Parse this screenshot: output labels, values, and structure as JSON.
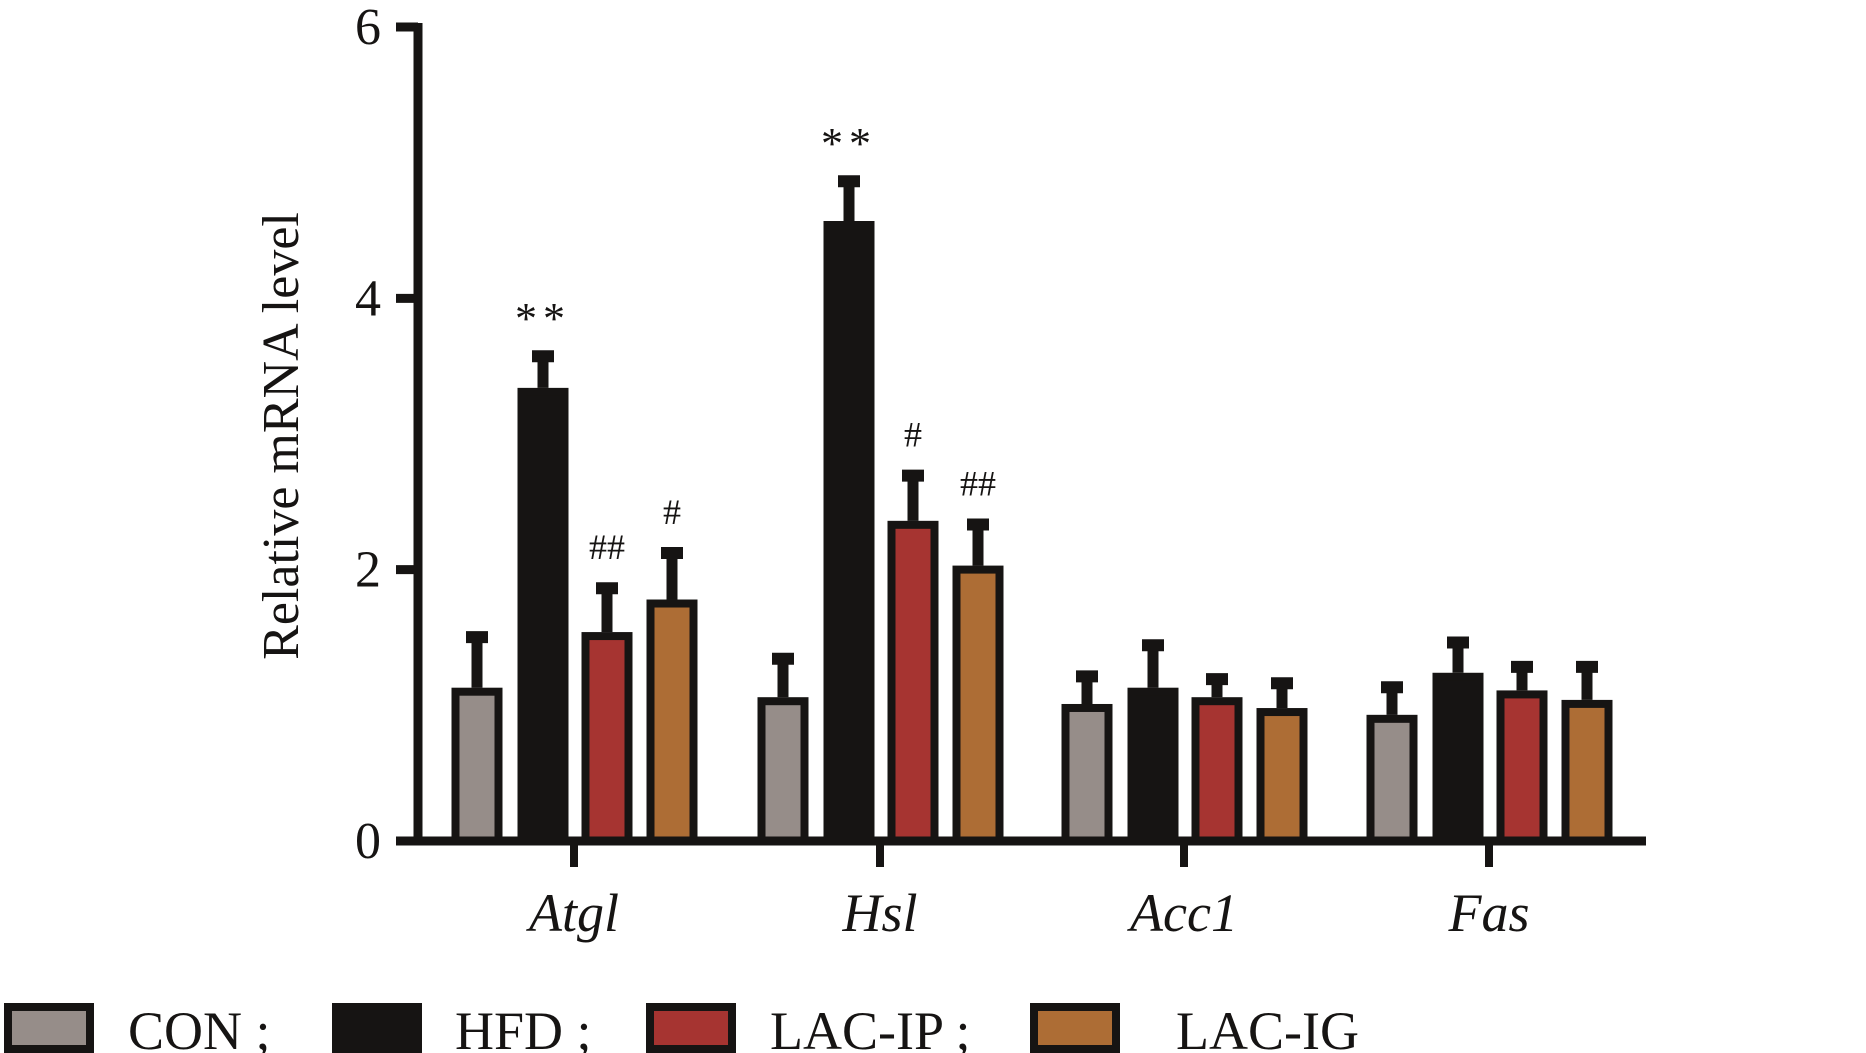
{
  "chart_data": {
    "type": "bar",
    "title": "",
    "xlabel": "",
    "ylabel": "Relative mRNA level",
    "ylim": [
      0,
      6
    ],
    "yticks": [
      "0",
      "2",
      "4",
      "6"
    ],
    "grid": false,
    "legend_position": "bottom",
    "categories": [
      "Atgl",
      "Hsl",
      "Acc1",
      "Fas"
    ],
    "series": [
      {
        "name": "CON",
        "legend_label": "CON ;",
        "color": "#968d89",
        "values": [
          1.13,
          1.06,
          1.01,
          0.93
        ],
        "error_upper": [
          1.54,
          1.38,
          1.25,
          1.17
        ],
        "annotations": [
          "",
          "",
          "",
          ""
        ]
      },
      {
        "name": "HFD",
        "legend_label": "HFD ;",
        "color": "#161413",
        "values": [
          3.34,
          4.57,
          1.13,
          1.24
        ],
        "error_upper": [
          3.61,
          4.9,
          1.48,
          1.5
        ],
        "annotations": [
          "**",
          "**",
          "",
          ""
        ]
      },
      {
        "name": "LAC-IP",
        "legend_label": "LAC-IP ;",
        "color": "#a63431",
        "values": [
          1.54,
          2.36,
          1.06,
          1.11
        ],
        "error_upper": [
          1.9,
          2.73,
          1.23,
          1.32
        ],
        "annotations": [
          "##",
          "#",
          "",
          ""
        ]
      },
      {
        "name": "LAC-IG",
        "legend_label": "LAC-IG",
        "color": "#ad6d35",
        "values": [
          1.78,
          2.03,
          0.98,
          1.04
        ],
        "error_upper": [
          2.16,
          2.37,
          1.2,
          1.32
        ],
        "annotations": [
          "#",
          "##",
          "",
          ""
        ]
      }
    ]
  }
}
